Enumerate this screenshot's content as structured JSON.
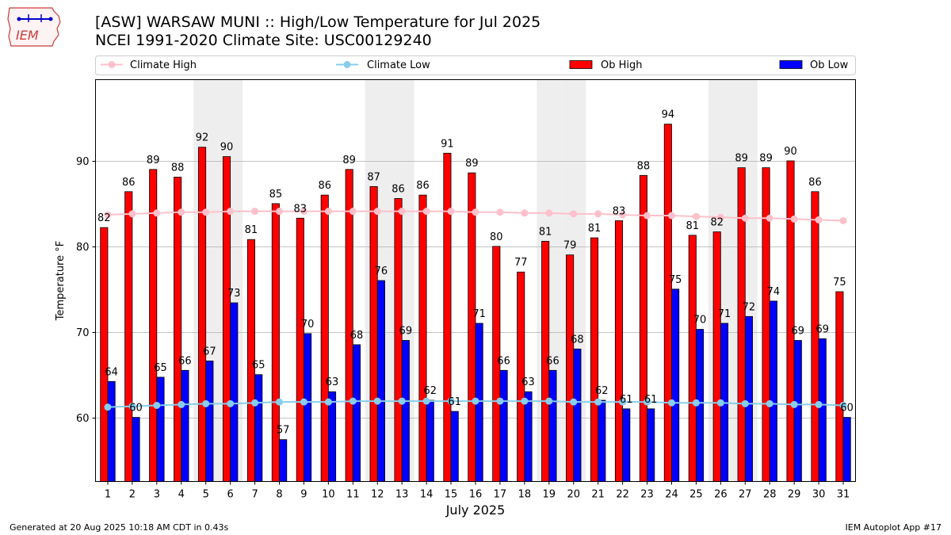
{
  "header": {
    "title_line1": "[ASW] WARSAW MUNI :: High/Low Temperature for Jul 2025",
    "title_line2": "NCEI 1991-2020 Climate Site: USC00129240",
    "logo_text": "IEM"
  },
  "footer": {
    "generated": "Generated at 20 Aug 2025 10:18 AM CDT in 0.43s",
    "app": "IEM Autoplot App #17"
  },
  "colors": {
    "ob_high": "#ff0000",
    "ob_low": "#0000ff",
    "climate_high": "#ffc0cb",
    "climate_low": "#87ceeb",
    "weekend_band": "#eeeeee"
  },
  "chart_data": {
    "type": "bar",
    "xlabel": "July 2025",
    "ylabel": "Temperature °F",
    "ylim": [
      52.5,
      99.5
    ],
    "yticks": [
      60,
      70,
      80,
      90
    ],
    "grid": true,
    "legend": [
      "Climate High",
      "Climate Low",
      "Ob High",
      "Ob Low"
    ],
    "legend_position": "top",
    "categories": [
      "1",
      "2",
      "3",
      "4",
      "5",
      "6",
      "7",
      "8",
      "9",
      "10",
      "11",
      "12",
      "13",
      "14",
      "15",
      "16",
      "17",
      "18",
      "19",
      "20",
      "21",
      "22",
      "23",
      "24",
      "25",
      "26",
      "27",
      "28",
      "29",
      "30",
      "31"
    ],
    "shaded_days": [
      5,
      6,
      12,
      13,
      19,
      20,
      26,
      27
    ],
    "series": [
      {
        "name": "Ob High",
        "kind": "bar",
        "values": [
          82,
          86,
          89,
          88,
          92,
          90,
          81,
          85,
          83,
          86,
          89,
          87,
          86,
          86,
          91,
          89,
          80,
          77,
          81,
          79,
          81,
          83,
          88,
          94,
          81,
          82,
          89,
          89,
          90,
          86,
          75
        ],
        "plotted": [
          82.2,
          86.4,
          89.0,
          88.1,
          91.6,
          90.5,
          80.8,
          85.0,
          83.3,
          86.0,
          89.0,
          87.0,
          85.6,
          86.0,
          90.9,
          88.6,
          80.0,
          77.0,
          80.6,
          79.0,
          81.0,
          83.0,
          88.3,
          94.3,
          81.3,
          81.7,
          89.2,
          89.2,
          90.0,
          86.4,
          74.7
        ]
      },
      {
        "name": "Ob Low",
        "kind": "bar",
        "values": [
          64,
          60,
          65,
          66,
          67,
          73,
          65,
          57,
          70,
          63,
          68,
          76,
          69,
          62,
          61,
          71,
          66,
          63,
          66,
          68,
          62,
          61,
          61,
          75,
          70,
          71,
          72,
          74,
          69,
          69,
          60
        ],
        "plotted": [
          64.2,
          60.0,
          64.7,
          65.5,
          66.6,
          73.4,
          65.0,
          57.4,
          69.8,
          63.0,
          68.5,
          76.0,
          69.0,
          62.0,
          60.7,
          71.0,
          65.5,
          63.0,
          65.5,
          68.0,
          62.0,
          61.0,
          61.0,
          75.0,
          70.3,
          71.0,
          71.8,
          73.6,
          69.0,
          69.2,
          60.0
        ]
      },
      {
        "name": "Climate High",
        "kind": "line",
        "values": [
          83.7,
          83.8,
          83.9,
          84.0,
          84.0,
          84.1,
          84.1,
          84.1,
          84.1,
          84.1,
          84.1,
          84.1,
          84.1,
          84.1,
          84.1,
          84.0,
          84.0,
          83.9,
          83.9,
          83.8,
          83.8,
          83.7,
          83.6,
          83.6,
          83.5,
          83.4,
          83.3,
          83.3,
          83.2,
          83.1,
          83.0
        ]
      },
      {
        "name": "Climate Low",
        "kind": "line",
        "values": [
          61.2,
          61.3,
          61.4,
          61.5,
          61.6,
          61.6,
          61.7,
          61.8,
          61.8,
          61.8,
          61.9,
          61.9,
          61.9,
          61.9,
          61.9,
          61.9,
          61.9,
          61.9,
          61.9,
          61.8,
          61.8,
          61.8,
          61.8,
          61.7,
          61.7,
          61.7,
          61.6,
          61.6,
          61.5,
          61.5,
          61.4
        ]
      }
    ]
  }
}
